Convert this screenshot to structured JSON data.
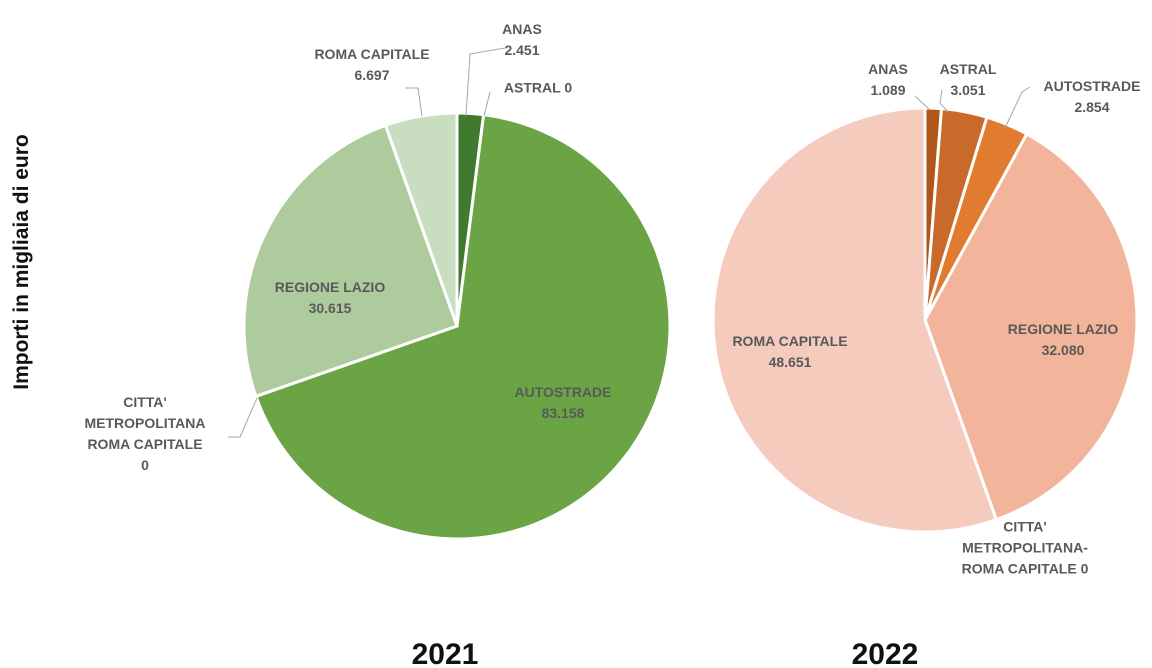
{
  "ylabel": "Importi in migliaia di euro",
  "chart_data": [
    {
      "type": "pie",
      "title": "2021",
      "categories": [
        "ANAS",
        "ASTRAL",
        "AUTOSTRADE",
        "CITTA' METROPOLITANA ROMA CAPITALE",
        "REGIONE LAZIO",
        "ROMA CAPITALE"
      ],
      "values": [
        2451,
        0,
        83158,
        0,
        30615,
        6697
      ],
      "value_labels": [
        "2.451",
        "0",
        "83.158",
        "0",
        "30.615",
        "6.697"
      ],
      "colors": [
        "#3f7a2f",
        "#4f8c38",
        "#6aa444",
        "#8fb878",
        "#aecb9e",
        "#c9ddc0"
      ]
    },
    {
      "type": "pie",
      "title": "2022",
      "categories": [
        "ANAS",
        "ASTRAL",
        "AUTOSTRADE",
        "REGIONE LAZIO",
        "CITTA' METROPOLITANA-ROMA CAPITALE",
        "ROMA CAPITALE"
      ],
      "values": [
        1089,
        3051,
        2854,
        32080,
        0,
        48651
      ],
      "value_labels": [
        "1.089",
        "3.051",
        "2.854",
        "32.080",
        "0",
        "48.651"
      ],
      "colors": [
        "#b0561b",
        "#c96a2a",
        "#e07b30",
        "#f2b49a",
        "#f3c1ad",
        "#f5cbbd"
      ]
    }
  ]
}
